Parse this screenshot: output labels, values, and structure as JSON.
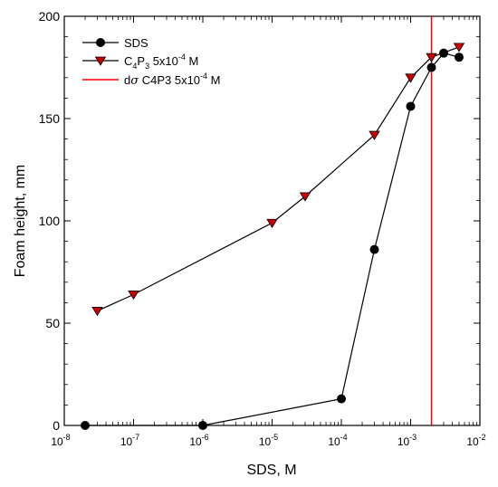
{
  "chart_data": {
    "type": "line",
    "xscale": "log",
    "xlim": [
      1e-08,
      0.01
    ],
    "ylim": [
      0,
      200
    ],
    "xlabel": "SDS, M",
    "ylabel": "Foam height, mm",
    "x_ticks": [
      1e-08,
      1e-07,
      1e-06,
      1e-05,
      0.0001,
      0.001,
      0.01
    ],
    "x_tick_exponents": [
      "-8",
      "-7",
      "-6",
      "-5",
      "-4",
      "-3",
      "-2"
    ],
    "y_ticks": [
      0,
      50,
      100,
      150,
      200
    ],
    "y_tick_labels": [
      "0",
      "50",
      "100",
      "150",
      "200"
    ],
    "grid": false,
    "legend_position": "top-left",
    "series": [
      {
        "name": "SDS",
        "marker": "circle",
        "color": "#000000",
        "x": [
          2e-08,
          1e-06,
          0.0001,
          0.0003,
          0.001,
          0.002,
          0.003,
          0.005
        ],
        "y": [
          0,
          0,
          13,
          86,
          156,
          175,
          182,
          180
        ]
      },
      {
        "name": "C4P3 5x10-4 M",
        "marker": "triangle-down",
        "color": "#cc0000",
        "x": [
          3e-08,
          1e-07,
          1e-05,
          3e-05,
          0.0003,
          0.001,
          0.002,
          0.005
        ],
        "y": [
          56,
          64,
          99,
          112,
          142,
          170,
          180,
          185
        ]
      }
    ],
    "vertical_line": {
      "name": "dσ C4P3 5x10-4 M",
      "x": 0.002,
      "color": "#ff0000"
    }
  }
}
